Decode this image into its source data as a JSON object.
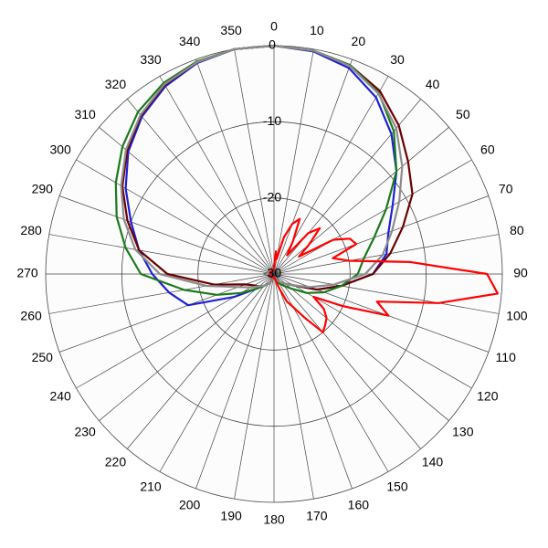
{
  "chart_data": {
    "type": "polar",
    "rlim": [
      -30,
      0
    ],
    "rticks": [
      -30,
      -20,
      -10,
      0
    ],
    "thetaticks": [
      0,
      10,
      20,
      30,
      40,
      50,
      60,
      70,
      80,
      90,
      100,
      110,
      120,
      130,
      140,
      150,
      160,
      170,
      180,
      190,
      200,
      210,
      220,
      230,
      240,
      250,
      260,
      270,
      280,
      290,
      300,
      310,
      320,
      330,
      340,
      350
    ],
    "grid": true,
    "series": [
      {
        "color": "#1f1fd6",
        "theta": [
          0,
          10,
          20,
          30,
          40,
          50,
          60,
          70,
          80,
          90,
          100,
          110,
          120,
          130,
          140,
          150,
          160,
          170,
          180,
          190,
          200,
          210,
          220,
          230,
          240,
          250,
          260,
          270,
          280,
          290,
          300,
          310,
          320,
          330,
          340,
          350
        ],
        "values": [
          0,
          -0.3,
          -1.2,
          -3.2,
          -6,
          -9,
          -12,
          -14,
          -15,
          -17,
          -21,
          -24,
          -27,
          -28,
          -28.5,
          -29,
          -29,
          -29.5,
          -29.5,
          -29.5,
          -29,
          -28.5,
          -28,
          -27,
          -24,
          -18,
          -16,
          -14,
          -12,
          -10,
          -7.5,
          -5,
          -3,
          -1.5,
          -0.5,
          0
        ]
      },
      {
        "color": "#6b0000",
        "theta": [
          0,
          10,
          20,
          30,
          40,
          50,
          60,
          70,
          80,
          90,
          100,
          110,
          120,
          130,
          140,
          150,
          160,
          170,
          180,
          190,
          200,
          210,
          220,
          230,
          240,
          250,
          260,
          270,
          280,
          290,
          300,
          310,
          320,
          330,
          340,
          350
        ],
        "values": [
          0,
          -0.2,
          -0.8,
          -2.2,
          -4.5,
          -7,
          -9,
          -12,
          -14.5,
          -17,
          -21,
          -24,
          -27,
          -28,
          -28.5,
          -29,
          -29.5,
          -29.5,
          -29.5,
          -29.5,
          -29,
          -28.5,
          -28,
          -27.5,
          -27,
          -26,
          -22,
          -16,
          -12,
          -9.5,
          -7,
          -4.8,
          -2.8,
          -1.3,
          -0.4,
          0
        ]
      },
      {
        "color": "#1a7a1a",
        "theta": [
          0,
          10,
          20,
          30,
          40,
          50,
          60,
          70,
          80,
          90,
          100,
          110,
          120,
          130,
          140,
          150,
          160,
          170,
          180,
          190,
          200,
          210,
          220,
          230,
          240,
          250,
          260,
          270,
          280,
          290,
          300,
          310,
          320,
          330,
          340,
          350
        ],
        "values": [
          0,
          -0.2,
          -0.8,
          -2.5,
          -5.5,
          -9,
          -13,
          -16,
          -18,
          -19,
          -21,
          -23,
          -25,
          -27,
          -28,
          -28.5,
          -29,
          -29.5,
          -29.5,
          -29.5,
          -29,
          -28.5,
          -28,
          -27,
          -25,
          -22,
          -18,
          -12.5,
          -10.2,
          -8,
          -6,
          -4,
          -2.2,
          -1,
          -0.3,
          0
        ]
      },
      {
        "color": "#8c8c8c",
        "theta": [
          0,
          10,
          20,
          30,
          40,
          50,
          60,
          70,
          80,
          90,
          100,
          110,
          120,
          130,
          140,
          150,
          160,
          170,
          180,
          190,
          200,
          210,
          220,
          230,
          240,
          250,
          260,
          270,
          280,
          290,
          300,
          310,
          320,
          330,
          340,
          350
        ],
        "values": [
          0,
          -0.2,
          -0.9,
          -2.6,
          -5,
          -8,
          -11,
          -13.5,
          -15.5,
          -18,
          -22,
          -25,
          -27,
          -28,
          -28.5,
          -29,
          -29.5,
          -29.5,
          -29.5,
          -29.5,
          -29,
          -28.5,
          -28,
          -27.5,
          -26.5,
          -25,
          -21,
          -15,
          -11.5,
          -9,
          -6.8,
          -4.6,
          -2.7,
          -1.2,
          -0.4,
          0
        ]
      },
      {
        "color": "#ff0000",
        "theta": [
          0,
          5,
          10,
          15,
          20,
          25,
          30,
          35,
          40,
          45,
          50,
          55,
          60,
          65,
          70,
          75,
          80,
          85,
          90,
          95,
          100,
          105,
          110,
          115,
          120,
          125,
          130,
          135,
          140,
          145,
          150,
          155,
          160,
          165,
          170,
          175,
          180,
          185,
          190,
          195,
          200,
          205,
          210,
          215,
          220,
          225,
          230,
          235,
          240,
          245,
          250,
          255,
          260,
          265,
          270,
          275,
          280,
          285,
          290,
          295,
          300,
          305,
          310,
          315,
          320,
          325,
          330,
          335,
          340,
          345,
          350,
          355
        ],
        "values": [
          -29,
          -27,
          -28,
          -25,
          -23,
          -22,
          -25,
          -27,
          -23,
          -21.5,
          -24,
          -26,
          -21,
          -19,
          -18.5,
          -22,
          -20,
          -12,
          -2,
          -0.5,
          -8,
          -16,
          -14,
          -20,
          -24,
          -22,
          -21,
          -20.5,
          -20,
          -23,
          -25,
          -26,
          -28,
          -29,
          -29.5,
          -29.5,
          -29.5,
          -29.5,
          -29.5,
          -29.5,
          -29.5,
          -29.5,
          -29.5,
          -29.5,
          -29.5,
          -29.5,
          -29.5,
          -29.5,
          -29.5,
          -29.5,
          -29.5,
          -29.5,
          -29.5,
          -29.5,
          -29.5,
          -29.5,
          -29.5,
          -29.5,
          -29.5,
          -29.5,
          -29.5,
          -29.5,
          -29.5,
          -29.5,
          -29.5,
          -29.5,
          -29.5,
          -29.5,
          -29.5,
          -29.5,
          -29.5,
          -29.5
        ]
      }
    ]
  }
}
